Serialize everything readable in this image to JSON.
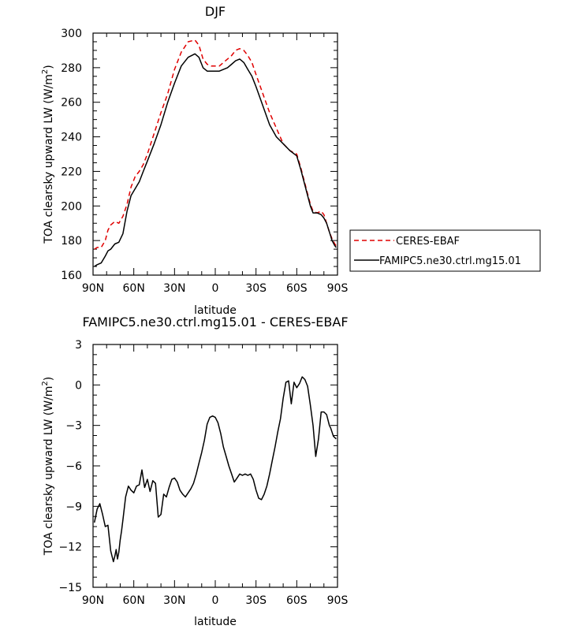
{
  "chart_data": [
    {
      "type": "line",
      "title": "DJF",
      "xlabel": "latitude",
      "ylabel": "TOA clearsky upward LW (W/m²)",
      "ylabel_parts": [
        "TOA clearsky upward LW (W/m",
        "2",
        ")"
      ],
      "xlim": [
        90,
        -90
      ],
      "ylim": [
        160,
        300
      ],
      "xticks": [
        90,
        60,
        30,
        0,
        -30,
        -60,
        -90
      ],
      "xticklabels": [
        "90N",
        "60N",
        "30N",
        "0",
        "30S",
        "60S",
        "90S"
      ],
      "yticks": [
        160,
        180,
        200,
        220,
        240,
        260,
        280,
        300
      ],
      "yticklabels": [
        "160",
        "180",
        "200",
        "220",
        "240",
        "260",
        "280",
        "300"
      ],
      "legend_position": "right",
      "series": [
        {
          "name": "CERES-EBAF",
          "color": "#e00000",
          "dash": "dashed",
          "x": [
            89,
            87,
            84,
            81,
            79,
            77,
            74,
            71,
            68,
            65,
            62,
            59,
            56,
            53,
            50,
            45,
            40,
            35,
            30,
            25,
            20,
            15,
            12,
            9,
            6,
            3,
            0,
            -3,
            -6,
            -9,
            -12,
            -15,
            -18,
            -21,
            -24,
            -27,
            -30,
            -35,
            -40,
            -45,
            -50,
            -55,
            -60,
            -63,
            -66,
            -68,
            -70,
            -72,
            -75,
            -78,
            -80,
            -82,
            -84,
            -86,
            -88,
            -89
          ],
          "y": [
            175,
            176,
            176,
            180,
            186,
            189,
            191,
            190,
            194,
            201,
            211,
            217,
            220,
            224,
            230,
            242,
            254,
            265,
            279,
            289,
            295,
            296,
            293,
            285,
            282,
            281,
            281,
            281,
            283,
            285,
            287,
            290,
            291,
            290,
            287,
            283,
            276,
            265,
            254,
            245,
            236,
            232,
            230,
            222,
            213,
            207,
            201,
            197,
            196,
            197,
            195,
            190,
            185,
            181,
            178,
            177
          ]
        },
        {
          "name": "FAMIPC5.ne30.ctrl.mg15.01",
          "color": "#000000",
          "dash": "solid",
          "x": [
            89,
            87,
            84,
            81,
            79,
            77,
            74,
            71,
            68,
            65,
            62,
            59,
            56,
            53,
            50,
            45,
            40,
            35,
            30,
            25,
            20,
            15,
            12,
            9,
            6,
            3,
            0,
            -3,
            -6,
            -9,
            -12,
            -15,
            -18,
            -21,
            -24,
            -27,
            -30,
            -35,
            -40,
            -45,
            -50,
            -55,
            -60,
            -63,
            -66,
            -68,
            -70,
            -72,
            -75,
            -78,
            -80,
            -82,
            -84,
            -86,
            -88,
            -89
          ],
          "y": [
            165,
            166,
            167,
            171,
            174,
            175,
            178,
            179,
            184,
            197,
            206,
            210,
            214,
            220,
            226,
            236,
            247,
            260,
            271,
            281,
            286,
            288,
            286,
            280,
            278,
            278,
            278,
            278,
            279,
            280,
            282,
            284,
            285,
            283,
            279,
            275,
            269,
            258,
            247,
            240,
            236,
            232,
            229,
            221,
            212,
            206,
            200,
            196,
            196,
            195,
            193,
            190,
            185,
            180,
            177,
            176
          ]
        }
      ]
    },
    {
      "type": "line",
      "title": "FAMIPC5.ne30.ctrl.mg15.01 - CERES-EBAF",
      "xlabel": "latitude",
      "ylabel": "TOA clearsky upward LW (W/m²)",
      "ylabel_parts": [
        "TOA clearsky upward LW (W/m",
        "2",
        ")"
      ],
      "xlim": [
        90,
        -90
      ],
      "ylim": [
        -15,
        3
      ],
      "xticks": [
        90,
        60,
        30,
        0,
        -30,
        -60,
        -90
      ],
      "xticklabels": [
        "90N",
        "60N",
        "30N",
        "0",
        "30S",
        "60S",
        "90S"
      ],
      "yticks": [
        -15,
        -12,
        -9,
        -6,
        -3,
        0,
        3
      ],
      "yticklabels": [
        "−15",
        "−12",
        "−9",
        "−6",
        "−3",
        "0",
        "3"
      ],
      "series": [
        {
          "name": "",
          "color": "#000000",
          "dash": "solid",
          "x": [
            89,
            87,
            85,
            83,
            81,
            79,
            77,
            75,
            74,
            73,
            72,
            71,
            70,
            69,
            68,
            66,
            64,
            62,
            60,
            58,
            56,
            54,
            52,
            50,
            48,
            46,
            44,
            42,
            40,
            38,
            36,
            34,
            32,
            30,
            28,
            26,
            24,
            22,
            20,
            18,
            16,
            14,
            12,
            10,
            8,
            6,
            4,
            2,
            0,
            -2,
            -4,
            -6,
            -8,
            -10,
            -12,
            -14,
            -16,
            -18,
            -20,
            -22,
            -24,
            -26,
            -28,
            -30,
            -32,
            -34,
            -36,
            -38,
            -40,
            -42,
            -44,
            -46,
            -48,
            -50,
            -52,
            -54,
            -56,
            -58,
            -60,
            -62,
            -64,
            -66,
            -68,
            -70,
            -72,
            -74,
            -76,
            -78,
            -80,
            -82,
            -84,
            -85,
            -86,
            -87,
            -88,
            -89
          ],
          "y": [
            -10.2,
            -9.2,
            -8.8,
            -9.6,
            -10.5,
            -10.4,
            -12.3,
            -13.1,
            -12.7,
            -12.2,
            -12.9,
            -12.4,
            -11.5,
            -10.8,
            -10.0,
            -8.3,
            -7.5,
            -7.8,
            -8.0,
            -7.5,
            -7.4,
            -6.3,
            -7.6,
            -7.0,
            -7.9,
            -7.1,
            -7.3,
            -9.8,
            -9.6,
            -8.1,
            -8.3,
            -7.6,
            -7.0,
            -6.9,
            -7.2,
            -7.8,
            -8.1,
            -8.3,
            -8.0,
            -7.7,
            -7.3,
            -6.6,
            -5.8,
            -5.0,
            -4.1,
            -2.9,
            -2.4,
            -2.3,
            -2.4,
            -2.8,
            -3.6,
            -4.6,
            -5.3,
            -6.0,
            -6.6,
            -7.2,
            -6.9,
            -6.6,
            -6.7,
            -6.6,
            -6.7,
            -6.6,
            -7.0,
            -7.8,
            -8.4,
            -8.5,
            -8.1,
            -7.5,
            -6.6,
            -5.6,
            -4.6,
            -3.5,
            -2.5,
            -1.0,
            0.2,
            0.3,
            -1.4,
            0.2,
            -0.2,
            0.1,
            0.6,
            0.4,
            -0.1,
            -1.5,
            -3.0,
            -5.3,
            -4.0,
            -2.0,
            -2.0,
            -2.2,
            -3.0,
            -3.2,
            -3.5,
            -3.8,
            -3.9,
            -4.0
          ]
        }
      ]
    }
  ],
  "legend": {
    "items": [
      {
        "label": "CERES-EBAF",
        "color": "#e00000",
        "dash": "dashed"
      },
      {
        "label": "FAMIPC5.ne30.ctrl.mg15.01",
        "color": "#000000",
        "dash": "solid"
      }
    ]
  }
}
